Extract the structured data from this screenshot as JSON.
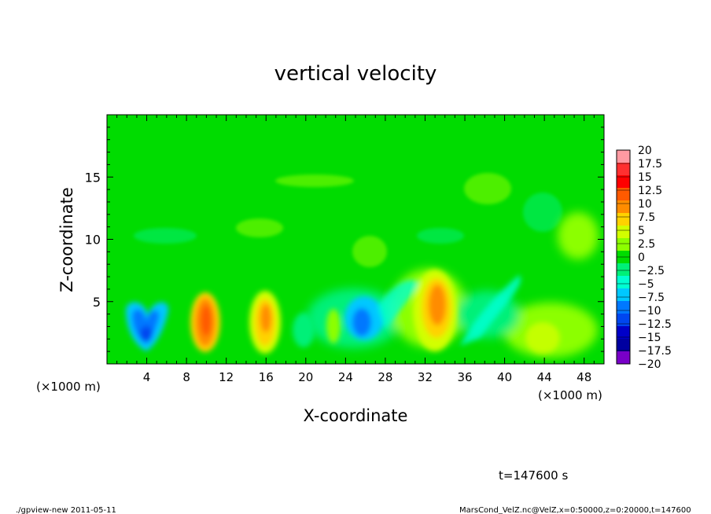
{
  "chart_data": {
    "type": "heatmap",
    "title": "vertical velocity",
    "xlabel": "X-coordinate",
    "ylabel": "Z-coordinate",
    "x_unit_label": "(×1000 m)",
    "x_tick_labels": [
      "4",
      "8",
      "12",
      "16",
      "20",
      "24",
      "28",
      "32",
      "36",
      "40",
      "44",
      "48"
    ],
    "y_tick_labels": [
      "5",
      "10",
      "15"
    ],
    "x_ticks": [
      4,
      8,
      12,
      16,
      20,
      24,
      28,
      32,
      36,
      40,
      44,
      48
    ],
    "y_ticks": [
      5,
      10,
      15
    ],
    "xlim": [
      0,
      50
    ],
    "ylim": [
      0,
      20
    ],
    "time_label": "t=147600 s",
    "footer_left": "./gpview-new  2011-05-11",
    "footer_right": "MarsCond_VelZ.nc@VelZ,x=0:50000,z=0:20000,t=147600",
    "colorbar": {
      "labels": [
        "20",
        "17.5",
        "15",
        "12.5",
        "10",
        "7.5",
        "5",
        "2.5",
        "0",
        "−2.5",
        "−5",
        "−7.5",
        "−10",
        "−12.5",
        "−15",
        "−17.5",
        "−20"
      ],
      "colors": [
        "#ff9aa2",
        "#ff3030",
        "#ff0000",
        "#ff5a00",
        "#ff8c00",
        "#ffd200",
        "#d2ff00",
        "#8cff00",
        "#00dc00",
        "#00f078",
        "#00ffd2",
        "#00c8ff",
        "#0078ff",
        "#0046f0",
        "#0000c8",
        "#0000a0",
        "#7800c8"
      ]
    },
    "features": [
      {
        "label": "downdraft",
        "x": 4.0,
        "z": 3.0,
        "value": -11
      },
      {
        "label": "updraft",
        "x": 10.0,
        "z": 3.4,
        "value": 11
      },
      {
        "label": "updraft",
        "x": 16.0,
        "z": 3.5,
        "value": 8
      },
      {
        "label": "downdraft",
        "x": 20.0,
        "z": 2.5,
        "value": -4
      },
      {
        "label": "updraft",
        "x": 23.0,
        "z": 3.0,
        "value": 3
      },
      {
        "label": "downdraft",
        "x": 25.5,
        "z": 3.2,
        "value": -9
      },
      {
        "label": "downdraft",
        "x": 29.0,
        "z": 5.0,
        "value": -4
      },
      {
        "label": "updraft",
        "x": 33.3,
        "z": 4.5,
        "value": 12
      },
      {
        "label": "downdraft",
        "x": 37.5,
        "z": 4.0,
        "value": -4
      },
      {
        "label": "updraft",
        "x": 44.0,
        "z": 2.5,
        "value": 4
      }
    ]
  }
}
